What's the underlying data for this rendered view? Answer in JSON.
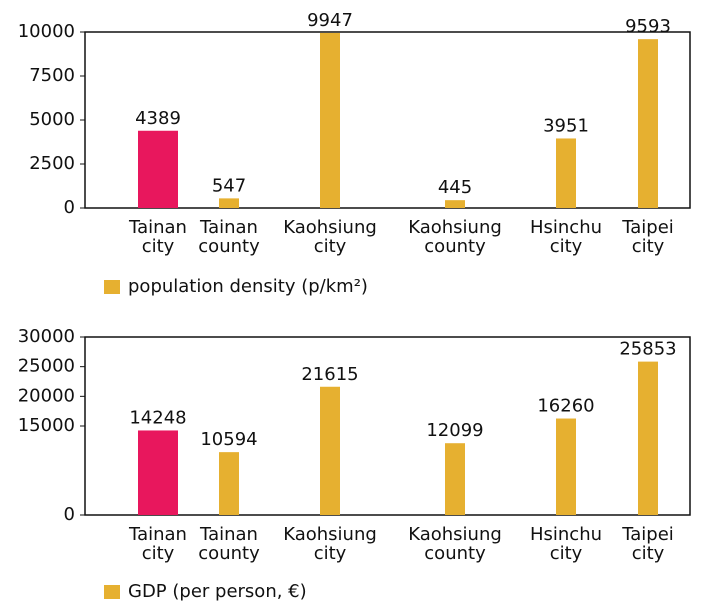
{
  "chart_data": [
    {
      "type": "bar",
      "categories": [
        [
          "Tainan",
          "city"
        ],
        [
          "Tainan",
          "county"
        ],
        [
          "Kaohsiung",
          "city"
        ],
        [
          "Kaohsiung",
          "county"
        ],
        [
          "Hsinchu",
          "city"
        ],
        [
          "Taipei",
          "city"
        ]
      ],
      "series": [
        {
          "name": "population density (p/km²)",
          "color": "#e6b030",
          "values": [
            4389,
            547,
            9947,
            445,
            3951,
            9593
          ]
        }
      ],
      "colors": [
        "#e8175d",
        "#e6b030",
        "#e6b030",
        "#e6b030",
        "#e6b030",
        "#e6b030"
      ],
      "ylim": [
        0,
        10000
      ],
      "yticks": [
        0,
        2500,
        5000,
        7500,
        10000
      ]
    },
    {
      "type": "bar",
      "categories": [
        [
          "Tainan",
          "city"
        ],
        [
          "Tainan",
          "county"
        ],
        [
          "Kaohsiung",
          "city"
        ],
        [
          "Kaohsiung",
          "county"
        ],
        [
          "Hsinchu",
          "city"
        ],
        [
          "Taipei",
          "city"
        ]
      ],
      "series": [
        {
          "name": "GDP (per person, €)",
          "color": "#e6b030",
          "values": [
            14248,
            10594,
            21615,
            12099,
            16260,
            25853
          ]
        }
      ],
      "colors": [
        "#e8175d",
        "#e6b030",
        "#e6b030",
        "#e6b030",
        "#e6b030",
        "#e6b030"
      ],
      "ylim": [
        0,
        30000
      ],
      "yticks": [
        0,
        15000,
        20000,
        25000,
        30000
      ]
    }
  ]
}
